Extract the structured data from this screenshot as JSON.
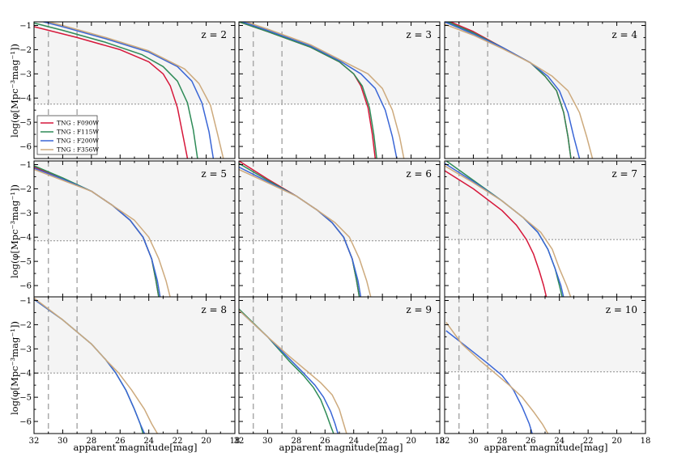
{
  "chart_data": {
    "type": "line",
    "layout": "3x3 grid of panels",
    "xlabel": "apparent magnitude[mag]",
    "ylabel": "log(φ[Mpc⁻³mag⁻¹])",
    "xlim": [
      32,
      18
    ],
    "ylim": [
      -6.5,
      -0.85
    ],
    "xticks": [
      32,
      30,
      28,
      26,
      24,
      22,
      20,
      18
    ],
    "yticks": [
      -1,
      -2,
      -3,
      -4,
      -5,
      -6
    ],
    "vertical_dashed_lines": [
      31,
      29
    ],
    "shaded_region": "gray band above horizontal dotted threshold line, from the threshold to the top of each panel",
    "legend": {
      "placement": "left, in first panel",
      "entries": [
        "TNG : F090W",
        "TNG : F115W",
        "TNG : F200W",
        "TNG : F356W"
      ]
    },
    "series_colors": {
      "F090W": "#d6173a",
      "F115W": "#2e8b57",
      "F200W": "#3a66d6",
      "F356W": "#cdaa7d"
    },
    "panels": [
      {
        "label": "z = 2",
        "threshold": -4.25,
        "series": [
          {
            "name": "F090W",
            "x": [
              32,
              29,
              26,
              24,
              23,
              22.5,
              22,
              21.6,
              21.3
            ],
            "y": [
              -1.05,
              -1.5,
              -2.0,
              -2.5,
              -3.0,
              -3.5,
              -4.4,
              -5.6,
              -6.5
            ]
          },
          {
            "name": "F115W",
            "x": [
              32,
              30,
              27,
              24.5,
              23,
              22,
              21.3,
              20.9,
              20.6
            ],
            "y": [
              -0.9,
              -1.2,
              -1.7,
              -2.2,
              -2.7,
              -3.3,
              -4.2,
              -5.3,
              -6.5
            ]
          },
          {
            "name": "F200W",
            "x": [
              32,
              30,
              27,
              24,
              22,
              21,
              20.3,
              19.8,
              19.5
            ],
            "y": [
              -0.75,
              -1.05,
              -1.55,
              -2.1,
              -2.7,
              -3.3,
              -4.2,
              -5.4,
              -6.5
            ]
          },
          {
            "name": "F356W",
            "x": [
              32,
              30,
              27,
              24,
              21.5,
              20.5,
              19.7,
              19.2,
              18.8
            ],
            "y": [
              -0.7,
              -1.0,
              -1.5,
              -2.05,
              -2.8,
              -3.4,
              -4.3,
              -5.5,
              -6.5
            ]
          }
        ]
      },
      {
        "label": "z = 3",
        "threshold": -4.25,
        "series": [
          {
            "name": "F090W",
            "x": [
              32,
              30,
              27,
              25,
              24,
              23.5,
              23,
              22.7,
              22.5
            ],
            "y": [
              -0.85,
              -1.25,
              -1.9,
              -2.5,
              -3.0,
              -3.5,
              -4.4,
              -5.5,
              -6.5
            ]
          },
          {
            "name": "F115W",
            "x": [
              32,
              30,
              27,
              25,
              24,
              23.4,
              22.9,
              22.6,
              22.4
            ],
            "y": [
              -0.85,
              -1.25,
              -1.9,
              -2.5,
              -3.0,
              -3.5,
              -4.4,
              -5.5,
              -6.5
            ]
          },
          {
            "name": "F200W",
            "x": [
              32,
              30,
              27,
              25,
              23.5,
              22.5,
              21.8,
              21.3,
              21.0
            ],
            "y": [
              -0.8,
              -1.2,
              -1.85,
              -2.45,
              -3.0,
              -3.6,
              -4.5,
              -5.6,
              -6.5
            ]
          },
          {
            "name": "F356W",
            "x": [
              32,
              30,
              27,
              25,
              23,
              22,
              21.3,
              20.8,
              20.5
            ],
            "y": [
              -0.75,
              -1.15,
              -1.8,
              -2.4,
              -3.0,
              -3.6,
              -4.5,
              -5.6,
              -6.5
            ]
          }
        ]
      },
      {
        "label": "z = 4",
        "threshold": -4.25,
        "series": [
          {
            "name": "F090W",
            "x": [
              32,
              30,
              28,
              26,
              25,
              24.2,
              23.7,
              23.4,
              23.2
            ],
            "y": [
              -0.75,
              -1.25,
              -1.9,
              -2.55,
              -3.1,
              -3.7,
              -4.6,
              -5.6,
              -6.5
            ]
          },
          {
            "name": "F115W",
            "x": [
              32,
              30,
              28,
              26,
              25,
              24.2,
              23.7,
              23.4,
              23.2
            ],
            "y": [
              -0.8,
              -1.3,
              -1.9,
              -2.55,
              -3.1,
              -3.7,
              -4.6,
              -5.6,
              -6.5
            ]
          },
          {
            "name": "F200W",
            "x": [
              32,
              30,
              28,
              26,
              24.8,
              24,
              23.4,
              23.0,
              22.6
            ],
            "y": [
              -0.85,
              -1.35,
              -1.9,
              -2.55,
              -3.1,
              -3.7,
              -4.6,
              -5.6,
              -6.5
            ]
          },
          {
            "name": "F356W",
            "x": [
              32,
              30,
              28,
              26,
              24.5,
              23.4,
              22.6,
              22.1,
              21.7
            ],
            "y": [
              -0.95,
              -1.4,
              -1.95,
              -2.55,
              -3.1,
              -3.7,
              -4.6,
              -5.6,
              -6.5
            ]
          }
        ]
      },
      {
        "label": "z = 5",
        "threshold": -4.15,
        "series": [
          {
            "name": "F090W",
            "x": [
              32,
              30,
              28,
              26.5,
              25.3,
              24.4,
              23.8,
              23.5,
              23.3
            ],
            "y": [
              -1.1,
              -1.6,
              -2.1,
              -2.7,
              -3.3,
              -4.0,
              -4.9,
              -5.8,
              -6.5
            ]
          },
          {
            "name": "F115W",
            "x": [
              32,
              30,
              28,
              26.5,
              25.3,
              24.4,
              23.8,
              23.5,
              23.3
            ],
            "y": [
              -1.05,
              -1.55,
              -2.1,
              -2.7,
              -3.3,
              -4.0,
              -4.9,
              -5.8,
              -6.5
            ]
          },
          {
            "name": "F200W",
            "x": [
              32,
              30,
              28,
              26.5,
              25.3,
              24.4,
              23.8,
              23.4,
              23.2
            ],
            "y": [
              -1.15,
              -1.6,
              -2.1,
              -2.7,
              -3.3,
              -4.0,
              -4.9,
              -5.8,
              -6.5
            ]
          },
          {
            "name": "F356W",
            "x": [
              32,
              30,
              28,
              26.5,
              25,
              24,
              23.3,
              22.8,
              22.5
            ],
            "y": [
              -1.2,
              -1.65,
              -2.1,
              -2.7,
              -3.3,
              -4.0,
              -4.9,
              -5.8,
              -6.5
            ]
          }
        ]
      },
      {
        "label": "z = 6",
        "threshold": -4.15,
        "series": [
          {
            "name": "F090W",
            "x": [
              32,
              30,
              28,
              26.5,
              25.5,
              24.7,
              24.1,
              23.8,
              23.6
            ],
            "y": [
              -0.85,
              -1.6,
              -2.3,
              -2.9,
              -3.4,
              -4.0,
              -4.9,
              -5.8,
              -6.5
            ]
          },
          {
            "name": "F115W",
            "x": [
              32,
              30,
              28,
              26.5,
              25.5,
              24.7,
              24.1,
              23.8,
              23.6
            ],
            "y": [
              -0.95,
              -1.65,
              -2.3,
              -2.9,
              -3.4,
              -4.0,
              -4.9,
              -5.8,
              -6.5
            ]
          },
          {
            "name": "F200W",
            "x": [
              32,
              30,
              28,
              26.5,
              25.5,
              24.7,
              24.1,
              23.7,
              23.5
            ],
            "y": [
              -1.1,
              -1.7,
              -2.3,
              -2.9,
              -3.4,
              -4.0,
              -4.9,
              -5.8,
              -6.5
            ]
          },
          {
            "name": "F356W",
            "x": [
              32,
              30,
              28,
              26.5,
              25.3,
              24.3,
              23.6,
              23.1,
              22.8
            ],
            "y": [
              -1.2,
              -1.75,
              -2.3,
              -2.9,
              -3.4,
              -4.0,
              -4.9,
              -5.8,
              -6.5
            ]
          }
        ]
      },
      {
        "label": "z = 7",
        "threshold": -4.1,
        "series": [
          {
            "name": "F090W",
            "x": [
              32,
              30,
              28,
              27,
              26.3,
              25.8,
              25.4,
              25.1,
              24.9
            ],
            "y": [
              -1.25,
              -2.0,
              -2.9,
              -3.5,
              -4.1,
              -4.7,
              -5.4,
              -6.0,
              -6.5
            ]
          },
          {
            "name": "F115W",
            "x": [
              32,
              30,
              28,
              26.5,
              25.5,
              24.8,
              24.3,
              24.0,
              23.8
            ],
            "y": [
              -0.8,
              -1.65,
              -2.5,
              -3.2,
              -3.8,
              -4.5,
              -5.3,
              -6.0,
              -6.5
            ]
          },
          {
            "name": "F200W",
            "x": [
              32,
              30,
              28,
              26.5,
              25.5,
              24.8,
              24.3,
              23.9,
              23.7
            ],
            "y": [
              -0.95,
              -1.7,
              -2.5,
              -3.2,
              -3.8,
              -4.5,
              -5.3,
              -6.0,
              -6.5
            ]
          },
          {
            "name": "F356W",
            "x": [
              32,
              30,
              28,
              26.5,
              25.3,
              24.5,
              24.0,
              23.5,
              23.2
            ],
            "y": [
              -1.05,
              -1.75,
              -2.5,
              -3.2,
              -3.8,
              -4.5,
              -5.3,
              -6.0,
              -6.5
            ]
          }
        ]
      },
      {
        "label": "z = 8",
        "threshold": -4.0,
        "series": [
          {
            "name": "F115W",
            "x": [
              32,
              30,
              28,
              27,
              26.3,
              25.6,
              25.0,
              24.6,
              24.4
            ],
            "y": [
              -0.95,
              -1.8,
              -2.8,
              -3.45,
              -4.0,
              -4.7,
              -5.5,
              -6.1,
              -6.5
            ]
          },
          {
            "name": "F200W",
            "x": [
              32,
              30,
              28,
              27,
              26.3,
              25.6,
              25.0,
              24.6,
              24.3
            ],
            "y": [
              -0.95,
              -1.8,
              -2.8,
              -3.45,
              -4.0,
              -4.7,
              -5.5,
              -6.1,
              -6.5
            ]
          },
          {
            "name": "F356W",
            "x": [
              32,
              30,
              28,
              27,
              26.1,
              25.2,
              24.3,
              23.8,
              23.4
            ],
            "y": [
              -0.9,
              -1.8,
              -2.8,
              -3.45,
              -4.0,
              -4.7,
              -5.5,
              -6.1,
              -6.5
            ]
          }
        ]
      },
      {
        "label": "z = 9",
        "threshold": -4.0,
        "series": [
          {
            "name": "F115W",
            "x": [
              32,
              30,
              28.5,
              27.5,
              26.8,
              26.3,
              25.9,
              25.6,
              25.4
            ],
            "y": [
              -1.35,
              -2.5,
              -3.5,
              -4.1,
              -4.6,
              -5.1,
              -5.7,
              -6.2,
              -6.5
            ]
          },
          {
            "name": "F200W",
            "x": [
              32,
              30,
              28.5,
              27.5,
              26.7,
              26.1,
              25.6,
              25.3,
              25.1
            ],
            "y": [
              -1.4,
              -2.5,
              -3.4,
              -4.0,
              -4.5,
              -5.0,
              -5.6,
              -6.1,
              -6.5
            ]
          },
          {
            "name": "F356W",
            "x": [
              32,
              30,
              28.5,
              27.3,
              26.3,
              25.5,
              25.0,
              24.7,
              24.5
            ],
            "y": [
              -1.4,
              -2.5,
              -3.3,
              -3.9,
              -4.4,
              -4.9,
              -5.5,
              -6.1,
              -6.5
            ]
          }
        ]
      },
      {
        "label": "z = 10",
        "threshold": -3.95,
        "series": [
          {
            "name": "F200W",
            "x": [
              31.9,
              30.5,
              29,
              28,
              27.2,
              26.6,
              26.1,
              25.9
            ],
            "y": [
              -2.25,
              -2.9,
              -3.6,
              -4.1,
              -4.7,
              -5.4,
              -6.1,
              -6.5
            ]
          },
          {
            "name": "F356W",
            "x": [
              31.9,
              30.8,
              29.5,
              28.5,
              27.5,
              26.6,
              25.8,
              25.2,
              24.8
            ],
            "y": [
              -1.9,
              -2.8,
              -3.5,
              -4.0,
              -4.5,
              -5.0,
              -5.6,
              -6.1,
              -6.5
            ]
          }
        ]
      }
    ]
  }
}
